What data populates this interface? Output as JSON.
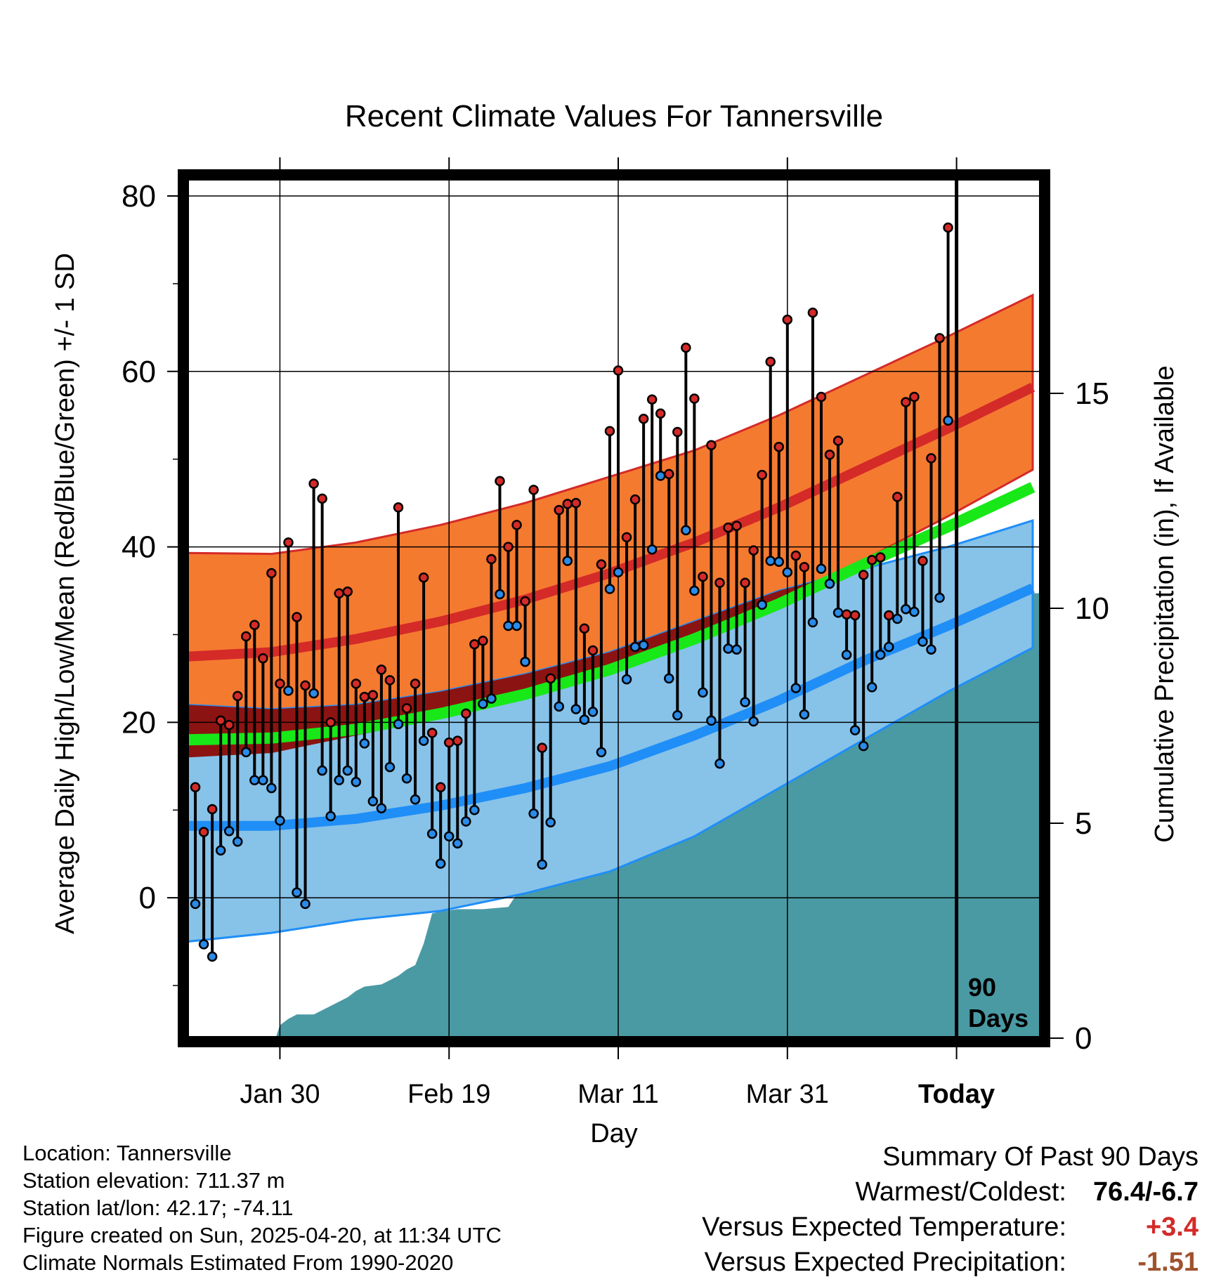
{
  "chart_data": {
    "type": "line",
    "title": "Recent Climate Values For Tannersville",
    "xlabel": "Day",
    "ylabel_left": "Average Daily High/Low/Mean (Red/Blue/Green) +/- 1 SD",
    "ylabel_right": "Cumulative Precipitation (in), If Available",
    "x_ticks": [
      {
        "day": 11,
        "label": "Jan 30"
      },
      {
        "day": 31,
        "label": "Feb 19"
      },
      {
        "day": 51,
        "label": "Mar 11"
      },
      {
        "day": 71,
        "label": "Mar 31"
      },
      {
        "day": 91,
        "label": "Today"
      }
    ],
    "xlim": [
      0,
      101
    ],
    "ylim_left": [
      -16,
      82
    ],
    "y_ticks_left": [
      0,
      20,
      40,
      60,
      80
    ],
    "ylim_right": [
      0,
      20
    ],
    "y_ticks_right": [
      0,
      5,
      10,
      15
    ],
    "today_day": 91,
    "today_label_line1": "90",
    "today_label_line2": "Days",
    "grid": true,
    "colors": {
      "high_band": "#f47a30",
      "high_mean": "#d42a28",
      "low_band": "#87c2e9",
      "low_mean": "#1f8ef7",
      "mean_line": "#18e818",
      "overlap_band": "#8b1412",
      "precip": "#4a9aa4",
      "high_dot": "#d42a28",
      "low_dot": "#2a8be8"
    },
    "normal_high": {
      "days": [
        0,
        10,
        20,
        30,
        40,
        50,
        60,
        70,
        80,
        90,
        100
      ],
      "mean": [
        27.5,
        28,
        29.5,
        31.5,
        34,
        37,
        40.5,
        44.5,
        49,
        53.5,
        58.2
      ],
      "upper": [
        39.3,
        39.2,
        40.5,
        42.5,
        45,
        48,
        51,
        55,
        59.5,
        64,
        68.7
      ],
      "lower": [
        16,
        16.5,
        18.5,
        20.5,
        23,
        26,
        29.5,
        34,
        38.5,
        43.5,
        48.8
      ]
    },
    "normal_low": {
      "days": [
        0,
        10,
        20,
        30,
        40,
        50,
        60,
        70,
        80,
        90,
        100
      ],
      "mean": [
        8.2,
        8.2,
        9,
        10.5,
        12.5,
        15,
        18.5,
        22.5,
        27,
        31,
        35.3
      ],
      "upper": [
        22,
        21.5,
        22,
        23.5,
        25.5,
        28,
        31.5,
        35,
        37.5,
        40,
        43
      ],
      "lower": [
        -5,
        -4,
        -2.5,
        -1.5,
        0.5,
        3,
        7,
        12.5,
        18,
        23.5,
        28.5
      ]
    },
    "normal_mean": {
      "days": [
        0,
        10,
        20,
        30,
        40,
        50,
        60,
        70,
        80,
        90,
        100
      ],
      "values": [
        18,
        18.2,
        19.2,
        21,
        23.2,
        26,
        29.5,
        33.5,
        38,
        42.3,
        46.8
      ]
    },
    "daily_high": [
      12.6,
      7.5,
      10.1,
      20.2,
      19.7,
      23,
      29.8,
      31.1,
      27.3,
      37,
      24.4,
      40.5,
      32,
      24.2,
      47.2,
      45.5,
      20,
      34.7,
      34.9,
      24.4,
      22.9,
      23.1,
      26,
      24.8,
      44.5,
      21.6,
      24.4,
      36.5,
      18.8,
      12.6,
      17.7,
      17.9,
      21,
      28.9,
      29.3,
      38.6,
      47.5,
      40,
      42.5,
      33.8,
      46.5,
      17.1,
      25,
      44.2,
      44.9,
      45,
      30.7,
      28.2,
      38,
      53.2,
      60.1,
      41.1,
      45.4,
      54.6,
      56.8,
      55.2,
      48.3,
      53.1,
      62.7,
      56.9,
      36.6,
      51.6,
      35.9,
      42.2,
      42.4,
      35.9,
      39.6,
      48.2,
      61.1,
      51.4,
      65.9,
      39,
      37.7,
      66.7,
      57.1,
      50.5,
      52.1,
      32.3,
      32.2,
      36.8,
      38.5,
      38.8,
      32.2,
      45.7,
      56.5,
      57.1,
      38.4,
      50.1,
      63.8,
      76.4
    ],
    "daily_low": [
      -0.7,
      -5.3,
      -6.7,
      5.4,
      7.6,
      6.4,
      16.6,
      13.4,
      13.4,
      12.5,
      8.8,
      23.6,
      0.6,
      -0.7,
      23.3,
      14.5,
      9.3,
      13.4,
      14.5,
      13.2,
      17.6,
      11,
      10.2,
      14.9,
      19.8,
      13.6,
      11.2,
      17.9,
      7.3,
      3.9,
      7,
      6.2,
      8.7,
      10,
      22.1,
      22.7,
      34.6,
      31,
      31,
      26.9,
      9.6,
      3.8,
      8.6,
      21.8,
      38.4,
      21.5,
      20.3,
      21.2,
      16.6,
      35.2,
      37.1,
      24.9,
      28.6,
      28.8,
      39.7,
      48.1,
      25,
      20.8,
      41.9,
      35,
      23.4,
      20.2,
      15.3,
      28.4,
      28.3,
      22.3,
      20.1,
      33.4,
      38.4,
      38.3,
      37.1,
      23.9,
      20.9,
      31.4,
      37.5,
      35.8,
      32.5,
      27.7,
      19.1,
      17.3,
      24,
      27.7,
      28.6,
      31.8,
      32.9,
      32.6,
      29.2,
      28.3,
      34.2,
      54.4
    ],
    "precip": {
      "days": [
        0,
        10.5,
        11,
        12,
        13,
        15,
        17,
        18,
        19,
        20,
        21,
        23,
        24,
        25,
        26,
        27,
        28,
        29,
        30,
        32,
        35,
        38,
        39,
        40,
        43,
        44,
        45,
        48,
        50,
        54,
        55,
        56,
        57,
        59,
        60,
        61,
        63,
        65,
        67,
        70,
        72,
        74,
        75,
        76,
        77,
        78,
        79,
        81,
        82,
        83,
        84,
        86,
        88,
        90,
        91,
        101
      ],
      "values": [
        0,
        0,
        0.3,
        0.45,
        0.55,
        0.55,
        0.75,
        0.85,
        0.95,
        1.1,
        1.2,
        1.25,
        1.35,
        1.45,
        1.6,
        1.7,
        2.2,
        2.9,
        2.95,
        3,
        3,
        3.05,
        3.35,
        3.45,
        3.5,
        4.3,
        4.9,
        4.95,
        4.95,
        5,
        5.8,
        6.4,
        6.65,
        7,
        7.1,
        7.2,
        7.3,
        7.35,
        7.4,
        7.6,
        7.8,
        8,
        8.1,
        8.2,
        8.6,
        8.75,
        8.85,
        9.05,
        9.3,
        9.95,
        10.05,
        10.1,
        10.1,
        10.3,
        10.35,
        10.35
      ]
    }
  },
  "info": {
    "location": "Location: Tannersville",
    "elevation": "Station elevation: 711.37 m",
    "latlon": "Station lat/lon: 42.17; -74.11",
    "created": "Figure created on Sun, 2025-04-20, at 11:34 UTC",
    "normals": "Climate Normals Estimated From 1990-2020"
  },
  "summary": {
    "title": "Summary Of Past 90 Days",
    "warmest_label": "Warmest/Coldest:",
    "warmest_value": "76.4/-6.7",
    "temp_label": "Versus Expected Temperature:",
    "temp_value": "+3.4",
    "temp_color": "#d42a28",
    "precip_label": "Versus Expected Precipitation:",
    "precip_value": "-1.51",
    "precip_color": "#a0522d"
  }
}
